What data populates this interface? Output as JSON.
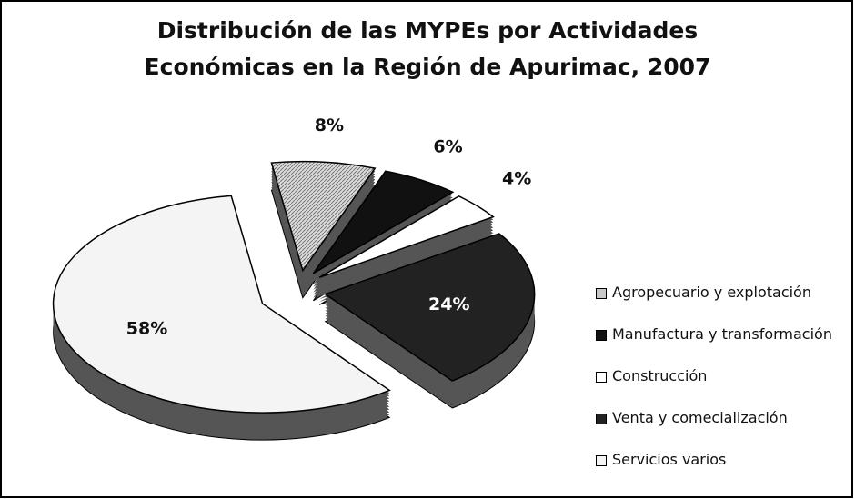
{
  "chart_data": {
    "type": "pie3d",
    "title": "Distribución de las MYPEs por Actividades Económicas en la Región de Apurimac, 2007",
    "categories": [
      "Agropecuario y explotación",
      "Manufactura y transformación",
      "Construcción",
      "Venta y comecialización",
      "Servicios varios"
    ],
    "values": [
      8,
      6,
      4,
      24,
      58
    ],
    "value_labels": [
      "8%",
      "6%",
      "4%",
      "24%",
      "58%"
    ],
    "colors": [
      "#c8c8c8",
      "#111111",
      "#ffffff",
      "#222222",
      "#f4f4f4"
    ],
    "legend": "right"
  }
}
